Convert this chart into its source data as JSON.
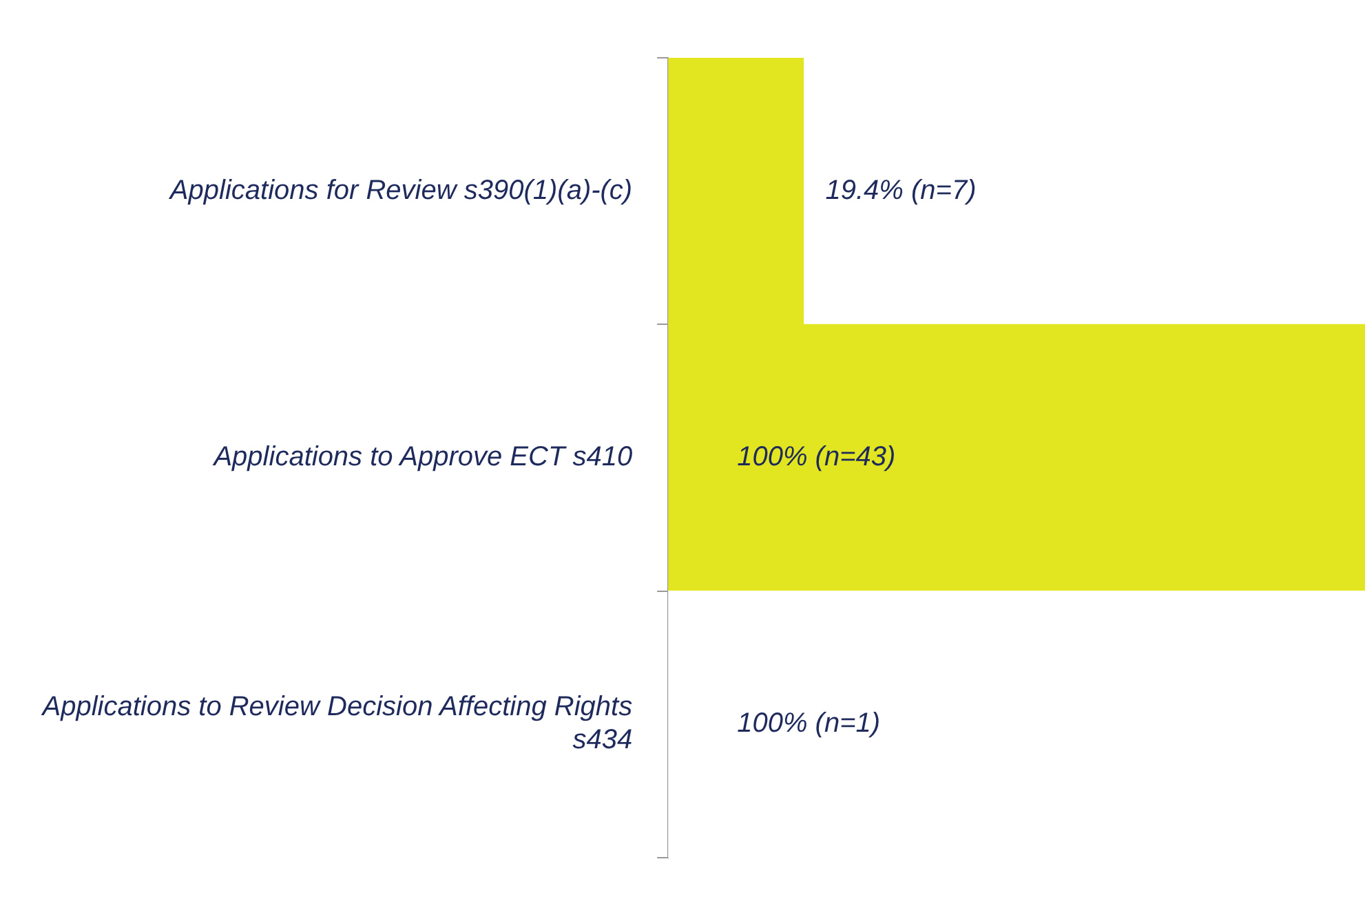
{
  "chart_data": {
    "type": "bar",
    "orientation": "horizontal",
    "categories": [
      "Applications for Review s390(1)(a)-(c)",
      "Applications to Approve ECT s410",
      "Applications to Review Decision Affecting Rights s434"
    ],
    "values": [
      19.4,
      100,
      100
    ],
    "colors": [
      "#e2e621",
      "#e2e621",
      "#ffffff"
    ],
    "value_labels": [
      "19.4% (n=7)",
      "100% (n=43)",
      "100% (n=1)"
    ],
    "legend": false
  }
}
